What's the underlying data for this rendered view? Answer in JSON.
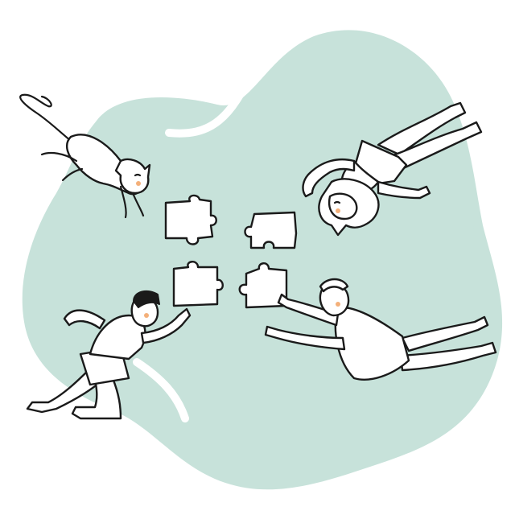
{
  "scene": {
    "description_tag": "teamwork-puzzle-illustration",
    "colors": {
      "background": "#ffffff",
      "blob": "#c7e2da",
      "ink": "#1a1a1a",
      "cheek": "#f4b07a"
    },
    "figures": [
      "cat",
      "woman-with-bun",
      "man-bottom-left",
      "man-bottom-right"
    ],
    "puzzle_piece_count": 4
  }
}
